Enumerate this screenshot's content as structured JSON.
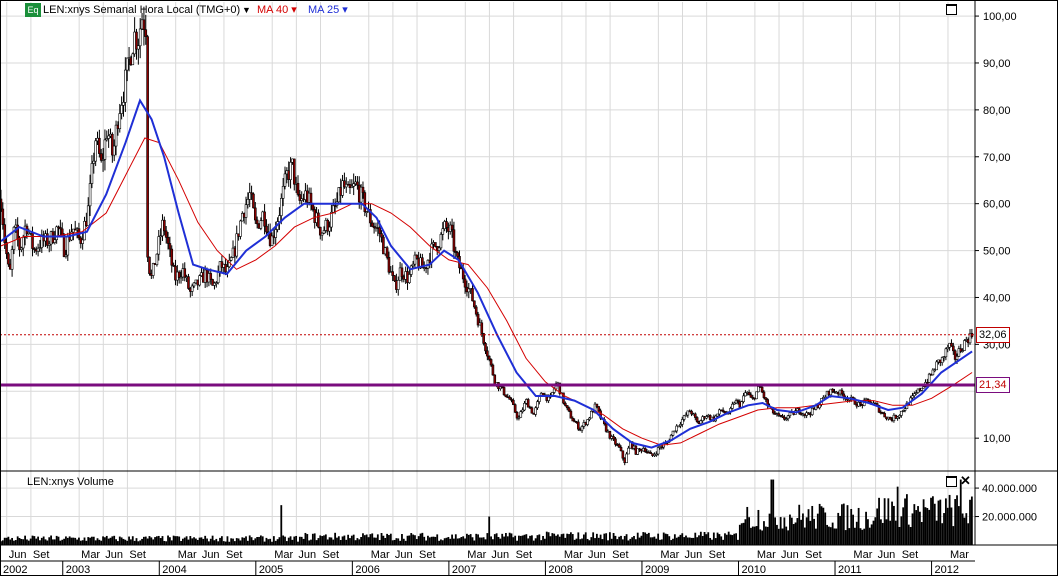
{
  "header": {
    "badge": "Eq",
    "symbol_label": "LEN:xnys Semanal Hora Local (TMG+0)",
    "caret": "▼",
    "ma40_label": "MA 40 ▾",
    "ma25_label": "MA 25 ▾"
  },
  "volume_panel": {
    "title": "LEN:xnys Volume",
    "close_glyph": "✕",
    "axis_labels": [
      "40.000.000",
      "20.000.000"
    ]
  },
  "price_tags": {
    "last": "32,06",
    "level": "21,34"
  },
  "colors": {
    "ma40": "#d40000",
    "ma25": "#1f2fd6",
    "horizontal_line": "#7a0c7e",
    "last_price_line": "#c00000",
    "grid": "#d9d9d9",
    "candle": "#000000",
    "down_body": "#8b0000"
  },
  "chart_data": {
    "type": "line",
    "title": "",
    "symbol": "LEN:xnys",
    "y_axis": {
      "ticks": [
        "100,00",
        "90,00",
        "80,00",
        "70,00",
        "60,00",
        "50,00",
        "40,00",
        "30,00",
        "10,00"
      ],
      "tick_values": [
        100,
        90,
        80,
        70,
        60,
        50,
        40,
        30,
        10
      ],
      "ylim": [
        3,
        103
      ]
    },
    "x_axis": {
      "xlim": [
        2002.35,
        2012.45
      ],
      "month_labels": [
        {
          "t": 2002.42,
          "label": "Jun"
        },
        {
          "t": 2002.67,
          "label": "Set"
        },
        {
          "t": 2003.17,
          "label": "Mar"
        },
        {
          "t": 2003.42,
          "label": "Jun"
        },
        {
          "t": 2003.67,
          "label": "Set"
        },
        {
          "t": 2004.17,
          "label": "Mar"
        },
        {
          "t": 2004.42,
          "label": "Jun"
        },
        {
          "t": 2004.67,
          "label": "Set"
        },
        {
          "t": 2005.17,
          "label": "Mar"
        },
        {
          "t": 2005.42,
          "label": "Jun"
        },
        {
          "t": 2005.67,
          "label": "Set"
        },
        {
          "t": 2006.17,
          "label": "Mar"
        },
        {
          "t": 2006.42,
          "label": "Jun"
        },
        {
          "t": 2006.67,
          "label": "Set"
        },
        {
          "t": 2007.17,
          "label": "Mar"
        },
        {
          "t": 2007.42,
          "label": "Jun"
        },
        {
          "t": 2007.67,
          "label": "Set"
        },
        {
          "t": 2008.17,
          "label": "Mar"
        },
        {
          "t": 2008.42,
          "label": "Jun"
        },
        {
          "t": 2008.67,
          "label": "Set"
        },
        {
          "t": 2009.17,
          "label": "Mar"
        },
        {
          "t": 2009.42,
          "label": "Jun"
        },
        {
          "t": 2009.67,
          "label": "Set"
        },
        {
          "t": 2010.17,
          "label": "Mar"
        },
        {
          "t": 2010.42,
          "label": "Jun"
        },
        {
          "t": 2010.67,
          "label": "Set"
        },
        {
          "t": 2011.17,
          "label": "Mar"
        },
        {
          "t": 2011.42,
          "label": "Jun"
        },
        {
          "t": 2011.67,
          "label": "Set"
        },
        {
          "t": 2012.17,
          "label": "Mar"
        }
      ],
      "year_labels": [
        "2002",
        "2003",
        "2004",
        "2005",
        "2006",
        "2007",
        "2008",
        "2009",
        "2010",
        "2011",
        "2012"
      ],
      "year_starts": [
        2002.0,
        2003.0,
        2004.0,
        2005.0,
        2006.0,
        2007.0,
        2008.0,
        2009.0,
        2010.0,
        2011.0,
        2012.0
      ]
    },
    "horizontal_levels": [
      {
        "value": 21.34,
        "label": "21,34",
        "style": "solid"
      },
      {
        "value": 32.06,
        "label": "32,06",
        "style": "dotted"
      }
    ],
    "price_path": [
      [
        2002.36,
        61
      ],
      [
        2002.4,
        52
      ],
      [
        2002.45,
        44
      ],
      [
        2002.5,
        55
      ],
      [
        2002.56,
        50
      ],
      [
        2002.62,
        56
      ],
      [
        2002.7,
        50
      ],
      [
        2002.78,
        52
      ],
      [
        2002.86,
        52
      ],
      [
        2002.95,
        55
      ],
      [
        2003.02,
        50
      ],
      [
        2003.1,
        55
      ],
      [
        2003.18,
        52
      ],
      [
        2003.26,
        58
      ],
      [
        2003.34,
        74
      ],
      [
        2003.4,
        68
      ],
      [
        2003.46,
        76
      ],
      [
        2003.52,
        70
      ],
      [
        2003.58,
        80
      ],
      [
        2003.64,
        85
      ],
      [
        2003.7,
        92
      ],
      [
        2003.74,
        96
      ],
      [
        2003.78,
        95
      ],
      [
        2003.82,
        100
      ],
      [
        2003.86,
        98
      ],
      [
        2003.88,
        48
      ],
      [
        2003.92,
        44
      ],
      [
        2003.98,
        50
      ],
      [
        2004.04,
        56
      ],
      [
        2004.1,
        50
      ],
      [
        2004.16,
        44
      ],
      [
        2004.24,
        46
      ],
      [
        2004.32,
        41
      ],
      [
        2004.4,
        43
      ],
      [
        2004.48,
        45
      ],
      [
        2004.56,
        42
      ],
      [
        2004.64,
        47
      ],
      [
        2004.7,
        45
      ],
      [
        2004.78,
        50
      ],
      [
        2004.86,
        58
      ],
      [
        2004.94,
        62
      ],
      [
        2005.0,
        55
      ],
      [
        2005.08,
        58
      ],
      [
        2005.16,
        52
      ],
      [
        2005.24,
        58
      ],
      [
        2005.32,
        66
      ],
      [
        2005.38,
        68
      ],
      [
        2005.44,
        60
      ],
      [
        2005.52,
        62
      ],
      [
        2005.6,
        58
      ],
      [
        2005.68,
        54
      ],
      [
        2005.76,
        56
      ],
      [
        2005.84,
        60
      ],
      [
        2005.9,
        64
      ],
      [
        2005.96,
        62
      ],
      [
        2006.04,
        64
      ],
      [
        2006.12,
        60
      ],
      [
        2006.2,
        56
      ],
      [
        2006.28,
        54
      ],
      [
        2006.36,
        48
      ],
      [
        2006.44,
        42
      ],
      [
        2006.5,
        46
      ],
      [
        2006.58,
        44
      ],
      [
        2006.66,
        48
      ],
      [
        2006.74,
        46
      ],
      [
        2006.82,
        50
      ],
      [
        2006.9,
        52
      ],
      [
        2006.96,
        55
      ],
      [
        2007.02,
        54
      ],
      [
        2007.08,
        48
      ],
      [
        2007.16,
        44
      ],
      [
        2007.24,
        40
      ],
      [
        2007.32,
        34
      ],
      [
        2007.4,
        28
      ],
      [
        2007.48,
        22
      ],
      [
        2007.56,
        20
      ],
      [
        2007.64,
        18
      ],
      [
        2007.72,
        14
      ],
      [
        2007.8,
        18
      ],
      [
        2007.88,
        15
      ],
      [
        2007.96,
        20
      ],
      [
        2008.04,
        18
      ],
      [
        2008.12,
        22
      ],
      [
        2008.2,
        17
      ],
      [
        2008.28,
        14
      ],
      [
        2008.36,
        12
      ],
      [
        2008.44,
        14
      ],
      [
        2008.52,
        17
      ],
      [
        2008.6,
        13
      ],
      [
        2008.68,
        10
      ],
      [
        2008.76,
        8
      ],
      [
        2008.82,
        5
      ],
      [
        2008.88,
        9
      ],
      [
        2008.94,
        7
      ],
      [
        2009.02,
        8
      ],
      [
        2009.1,
        6
      ],
      [
        2009.18,
        8
      ],
      [
        2009.26,
        9
      ],
      [
        2009.34,
        12
      ],
      [
        2009.42,
        14
      ],
      [
        2009.5,
        16
      ],
      [
        2009.58,
        13
      ],
      [
        2009.66,
        15
      ],
      [
        2009.74,
        14
      ],
      [
        2009.82,
        16
      ],
      [
        2009.9,
        15
      ],
      [
        2009.96,
        18
      ],
      [
        2010.02,
        17
      ],
      [
        2010.08,
        20
      ],
      [
        2010.14,
        18
      ],
      [
        2010.22,
        21
      ],
      [
        2010.3,
        17
      ],
      [
        2010.38,
        15
      ],
      [
        2010.46,
        14
      ],
      [
        2010.54,
        15
      ],
      [
        2010.62,
        16
      ],
      [
        2010.7,
        15
      ],
      [
        2010.78,
        16
      ],
      [
        2010.86,
        18
      ],
      [
        2010.94,
        20
      ],
      [
        2011.02,
        20
      ],
      [
        2011.1,
        19
      ],
      [
        2011.18,
        18
      ],
      [
        2011.26,
        17
      ],
      [
        2011.34,
        18
      ],
      [
        2011.42,
        17
      ],
      [
        2011.5,
        15
      ],
      [
        2011.58,
        14
      ],
      [
        2011.66,
        15
      ],
      [
        2011.74,
        17
      ],
      [
        2011.82,
        19
      ],
      [
        2011.9,
        21
      ],
      [
        2011.98,
        23
      ],
      [
        2012.06,
        26
      ],
      [
        2012.12,
        27
      ],
      [
        2012.18,
        30
      ],
      [
        2012.24,
        27
      ],
      [
        2012.3,
        29
      ],
      [
        2012.36,
        31
      ],
      [
        2012.42,
        32.06
      ]
    ],
    "series": [
      {
        "name": "MA 40",
        "color": "#d40000",
        "values": [
          [
            2002.36,
            51
          ],
          [
            2002.6,
            53
          ],
          [
            2002.9,
            53
          ],
          [
            2003.2,
            54
          ],
          [
            2003.45,
            58
          ],
          [
            2003.65,
            66
          ],
          [
            2003.85,
            74
          ],
          [
            2004.0,
            73
          ],
          [
            2004.2,
            65
          ],
          [
            2004.4,
            56
          ],
          [
            2004.6,
            50
          ],
          [
            2004.8,
            46
          ],
          [
            2005.0,
            48
          ],
          [
            2005.2,
            51
          ],
          [
            2005.4,
            55
          ],
          [
            2005.6,
            57
          ],
          [
            2005.8,
            58
          ],
          [
            2006.0,
            60
          ],
          [
            2006.2,
            60
          ],
          [
            2006.4,
            58
          ],
          [
            2006.6,
            55
          ],
          [
            2006.8,
            51
          ],
          [
            2007.0,
            48
          ],
          [
            2007.2,
            47
          ],
          [
            2007.4,
            42
          ],
          [
            2007.6,
            35
          ],
          [
            2007.8,
            27
          ],
          [
            2008.0,
            22
          ],
          [
            2008.2,
            19
          ],
          [
            2008.4,
            17
          ],
          [
            2008.6,
            15
          ],
          [
            2008.8,
            12
          ],
          [
            2009.0,
            10
          ],
          [
            2009.2,
            8.5
          ],
          [
            2009.4,
            9
          ],
          [
            2009.6,
            11
          ],
          [
            2009.8,
            13
          ],
          [
            2010.0,
            14.5
          ],
          [
            2010.2,
            16
          ],
          [
            2010.4,
            16.5
          ],
          [
            2010.6,
            16.5
          ],
          [
            2010.8,
            17
          ],
          [
            2011.0,
            17.5
          ],
          [
            2011.2,
            18
          ],
          [
            2011.4,
            18
          ],
          [
            2011.6,
            17
          ],
          [
            2011.8,
            17
          ],
          [
            2012.0,
            18.5
          ],
          [
            2012.2,
            21
          ],
          [
            2012.42,
            24
          ]
        ]
      },
      {
        "name": "MA 25",
        "color": "#1f2fd6",
        "values": [
          [
            2002.36,
            52
          ],
          [
            2002.55,
            55
          ],
          [
            2002.8,
            53
          ],
          [
            2003.05,
            53
          ],
          [
            2003.25,
            54
          ],
          [
            2003.45,
            62
          ],
          [
            2003.65,
            73
          ],
          [
            2003.8,
            82
          ],
          [
            2003.92,
            78
          ],
          [
            2004.05,
            70
          ],
          [
            2004.2,
            58
          ],
          [
            2004.35,
            47
          ],
          [
            2004.5,
            46
          ],
          [
            2004.7,
            45
          ],
          [
            2004.9,
            50
          ],
          [
            2005.1,
            53
          ],
          [
            2005.3,
            57
          ],
          [
            2005.5,
            60
          ],
          [
            2005.7,
            60
          ],
          [
            2005.9,
            60
          ],
          [
            2006.1,
            60
          ],
          [
            2006.25,
            57
          ],
          [
            2006.4,
            51
          ],
          [
            2006.6,
            46
          ],
          [
            2006.8,
            47
          ],
          [
            2006.95,
            50
          ],
          [
            2007.1,
            48
          ],
          [
            2007.3,
            41
          ],
          [
            2007.5,
            32
          ],
          [
            2007.7,
            24
          ],
          [
            2007.9,
            19
          ],
          [
            2008.1,
            19
          ],
          [
            2008.3,
            18
          ],
          [
            2008.5,
            16
          ],
          [
            2008.7,
            12
          ],
          [
            2008.9,
            9
          ],
          [
            2009.1,
            8
          ],
          [
            2009.3,
            9.5
          ],
          [
            2009.5,
            12
          ],
          [
            2009.7,
            13.5
          ],
          [
            2009.9,
            15.5
          ],
          [
            2010.1,
            17
          ],
          [
            2010.25,
            17.5
          ],
          [
            2010.4,
            16
          ],
          [
            2010.6,
            15.5
          ],
          [
            2010.8,
            17
          ],
          [
            2010.95,
            19
          ],
          [
            2011.15,
            18.5
          ],
          [
            2011.35,
            17.5
          ],
          [
            2011.55,
            16
          ],
          [
            2011.7,
            16.5
          ],
          [
            2011.9,
            19.5
          ],
          [
            2012.1,
            24
          ],
          [
            2012.42,
            28.5
          ]
        ]
      }
    ],
    "volume": {
      "ticks": [
        "40.000.000",
        "20.000.000"
      ],
      "tick_values": [
        40000000,
        20000000
      ],
      "ylim": [
        0,
        52000000
      ],
      "typical_by_period": [
        {
          "from": 2002.35,
          "to": 2005.5,
          "level": 5000000
        },
        {
          "from": 2005.5,
          "to": 2008.0,
          "level": 6500000
        },
        {
          "from": 2008.0,
          "to": 2010.0,
          "level": 7000000
        },
        {
          "from": 2010.0,
          "to": 2011.4,
          "level": 22000000
        },
        {
          "from": 2011.4,
          "to": 2012.45,
          "level": 27000000
        }
      ],
      "spikes": [
        {
          "t": 2005.27,
          "value": 28000000
        },
        {
          "t": 2007.42,
          "value": 20000000
        },
        {
          "t": 2010.35,
          "value": 46000000
        },
        {
          "t": 2011.65,
          "value": 41000000
        },
        {
          "t": 2012.3,
          "value": 46000000
        }
      ]
    }
  }
}
